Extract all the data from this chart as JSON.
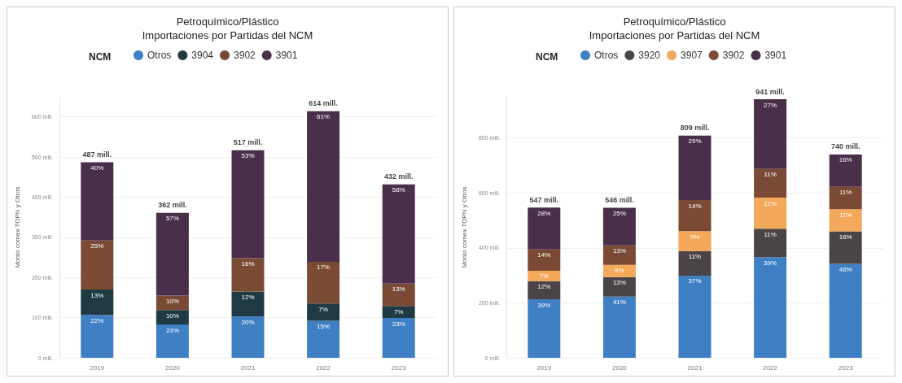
{
  "chart_data": [
    {
      "type": "bar",
      "stacked": true,
      "title": "Petroquímico/Plástico\nImportaciones por Partidas del NCM",
      "ylabel": "Monto comex TOPN y Otros",
      "legend_title": "NCM",
      "legend": "top",
      "grid": "y",
      "categories": [
        "2019",
        "2020",
        "2021",
        "2022",
        "2023"
      ],
      "ylim": [
        0,
        650
      ],
      "yticks": [
        {
          "value": 0,
          "label": "0 mill."
        },
        {
          "value": 100,
          "label": "100 mill."
        },
        {
          "value": 200,
          "label": "200 mill."
        },
        {
          "value": 300,
          "label": "300 mill."
        },
        {
          "value": 400,
          "label": "400 mill."
        },
        {
          "value": 500,
          "label": "500 mill."
        },
        {
          "value": 600,
          "label": "600 mill."
        }
      ],
      "totals": [
        "487 mill.",
        "362 mill.",
        "517 mill.",
        "614 mill.",
        "432 mill."
      ],
      "series": [
        {
          "name": "Otros",
          "color": "#3f7fc4",
          "values": [
            107,
            83,
            103,
            92,
            99
          ]
        },
        {
          "name": "3904",
          "color": "#1f3a42",
          "values": [
            63,
            36,
            62,
            43,
            30
          ]
        },
        {
          "name": "3902",
          "color": "#7a4a35",
          "values": [
            122,
            36,
            83,
            104,
            56
          ]
        },
        {
          "name": "3901",
          "color": "#4a2f4a",
          "values": [
            195,
            206,
            269,
            375,
            247
          ]
        }
      ],
      "annotations": [
        {
          "text": "22%",
          "x": "2019",
          "y": 107
        },
        {
          "text": "23%",
          "x": "2020",
          "y": 83
        },
        {
          "text": "20%",
          "x": "2021",
          "y": 103
        },
        {
          "text": "15%",
          "x": "2022",
          "y": 92
        },
        {
          "text": "23%",
          "x": "2023",
          "y": 99
        },
        {
          "text": "13%",
          "x": "2019",
          "y": 170
        },
        {
          "text": "10%",
          "x": "2020",
          "y": 119
        },
        {
          "text": "12%",
          "x": "2021",
          "y": 165
        },
        {
          "text": "7%",
          "x": "2022",
          "y": 135
        },
        {
          "text": "7%",
          "x": "2023",
          "y": 129
        },
        {
          "text": "25%",
          "x": "2019",
          "y": 292
        },
        {
          "text": "10%",
          "x": "2020",
          "y": 155
        },
        {
          "text": "16%",
          "x": "2021",
          "y": 248
        },
        {
          "text": "17%",
          "x": "2022",
          "y": 239
        },
        {
          "text": "13%",
          "x": "2023",
          "y": 185
        },
        {
          "text": "40%",
          "x": "2019",
          "y": 487
        },
        {
          "text": "57%",
          "x": "2020",
          "y": 361
        },
        {
          "text": "53%",
          "x": "2021",
          "y": 517
        },
        {
          "text": "61%",
          "x": "2022",
          "y": 614
        },
        {
          "text": "58%",
          "x": "2023",
          "y": 432
        }
      ]
    },
    {
      "type": "bar",
      "stacked": true,
      "title": "Petroquímico/Plástico\nImportaciones por Partidas del NCM",
      "ylabel": "Monto comex TOPN y Otros",
      "legend_title": "NCM",
      "legend": "top",
      "grid": "y",
      "categories": [
        "2019",
        "2020",
        "2021",
        "2022",
        "2023"
      ],
      "ylim": [
        0,
        950
      ],
      "yticks": [
        {
          "value": 0,
          "label": "0 mill."
        },
        {
          "value": 200,
          "label": "200 mill."
        },
        {
          "value": 400,
          "label": "400 mill."
        },
        {
          "value": 600,
          "label": "600 mill."
        },
        {
          "value": 800,
          "label": "800 mill."
        }
      ],
      "totals": [
        "547 mill.",
        "546 mill.",
        "809 mill.",
        "941 mill.",
        "740 mill."
      ],
      "series": [
        {
          "name": "Otros",
          "color": "#3f7fc4",
          "values": [
            213,
            223,
            299,
            366,
            342
          ]
        },
        {
          "name": "3920",
          "color": "#4a4446",
          "values": [
            66,
            71,
            89,
            104,
            118
          ]
        },
        {
          "name": "3907",
          "color": "#f4a85a",
          "values": [
            38,
            44,
            73,
            113,
            81
          ]
        },
        {
          "name": "3902",
          "color": "#7a4a35",
          "values": [
            77,
            71,
            113,
            104,
            81
          ]
        },
        {
          "name": "3901",
          "color": "#4a2f4a",
          "values": [
            153,
            137,
            235,
            254,
            118
          ]
        }
      ],
      "annotations": [
        {
          "text": "39%",
          "x": "2019",
          "y": 213
        },
        {
          "text": "41%",
          "x": "2020",
          "y": 223
        },
        {
          "text": "37%",
          "x": "2021",
          "y": 299
        },
        {
          "text": "39%",
          "x": "2022",
          "y": 366
        },
        {
          "text": "46%",
          "x": "2023",
          "y": 342
        },
        {
          "text": "12%",
          "x": "2019",
          "y": 279
        },
        {
          "text": "13%",
          "x": "2020",
          "y": 294
        },
        {
          "text": "11%",
          "x": "2021",
          "y": 388
        },
        {
          "text": "11%",
          "x": "2022",
          "y": 470
        },
        {
          "text": "16%",
          "x": "2023",
          "y": 460
        },
        {
          "text": "7%",
          "x": "2019",
          "y": 317
        },
        {
          "text": "8%",
          "x": "2020",
          "y": 338
        },
        {
          "text": "9%",
          "x": "2021",
          "y": 461
        },
        {
          "text": "12%",
          "x": "2022",
          "y": 583
        },
        {
          "text": "11%",
          "x": "2023",
          "y": 541
        },
        {
          "text": "14%",
          "x": "2019",
          "y": 394
        },
        {
          "text": "13%",
          "x": "2020",
          "y": 409
        },
        {
          "text": "14%",
          "x": "2021",
          "y": 574
        },
        {
          "text": "11%",
          "x": "2022",
          "y": 687
        },
        {
          "text": "11%",
          "x": "2023",
          "y": 622
        },
        {
          "text": "28%",
          "x": "2019",
          "y": 547
        },
        {
          "text": "25%",
          "x": "2020",
          "y": 546
        },
        {
          "text": "29%",
          "x": "2021",
          "y": 809
        },
        {
          "text": "27%",
          "x": "2022",
          "y": 941
        },
        {
          "text": "16%",
          "x": "2023",
          "y": 740
        }
      ]
    }
  ]
}
